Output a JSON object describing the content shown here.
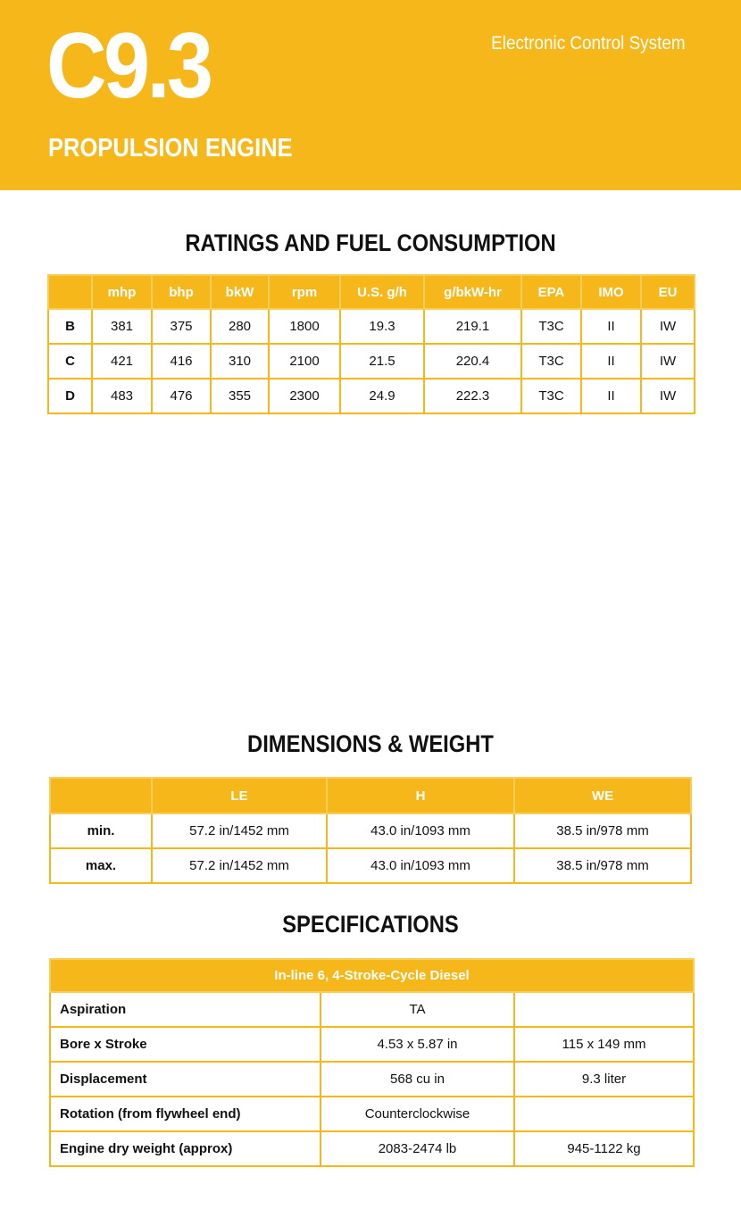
{
  "header": {
    "model": "C9.3",
    "subtitle": "PROPULSION ENGINE",
    "system": "Electronic Control System",
    "color": "#F6B71A"
  },
  "ratings": {
    "title": "RATINGS AND FUEL CONSUMPTION",
    "columns": [
      "",
      "mhp",
      "bhp",
      "bkW",
      "rpm",
      "U.S. g/h",
      "g/bkW-hr",
      "EPA",
      "IMO",
      "EU"
    ],
    "rows": [
      [
        "B",
        "381",
        "375",
        "280",
        "1800",
        "19.3",
        "219.1",
        "T3C",
        "II",
        "IW"
      ],
      [
        "C",
        "421",
        "416",
        "310",
        "2100",
        "21.5",
        "220.4",
        "T3C",
        "II",
        "IW"
      ],
      [
        "D",
        "483",
        "476",
        "355",
        "2300",
        "24.9",
        "222.3",
        "T3C",
        "II",
        "IW"
      ]
    ]
  },
  "dimensions": {
    "title": "DIMENSIONS & WEIGHT",
    "columns": [
      "",
      "LE",
      "H",
      "WE"
    ],
    "rows": [
      [
        "min.",
        "57.2 in/1452 mm",
        "43.0 in/1093 mm",
        "38.5 in/978 mm"
      ],
      [
        "max.",
        "57.2 in/1452 mm",
        "43.0 in/1093 mm",
        "38.5 in/978 mm"
      ]
    ]
  },
  "specifications": {
    "title": "SPECIFICATIONS",
    "header": "In-line 6, 4-Stroke-Cycle Diesel",
    "rows": [
      [
        "Aspiration",
        "TA",
        ""
      ],
      [
        "Bore x Stroke",
        "4.53 x 5.87 in",
        "115 x 149 mm"
      ],
      [
        "Displacement",
        "568 cu in",
        "9.3 liter"
      ],
      [
        "Rotation (from flywheel end)",
        "Counterclockwise",
        ""
      ],
      [
        "Engine dry weight (approx)",
        "2083-2474 lb",
        "945-1122 kg"
      ]
    ]
  }
}
